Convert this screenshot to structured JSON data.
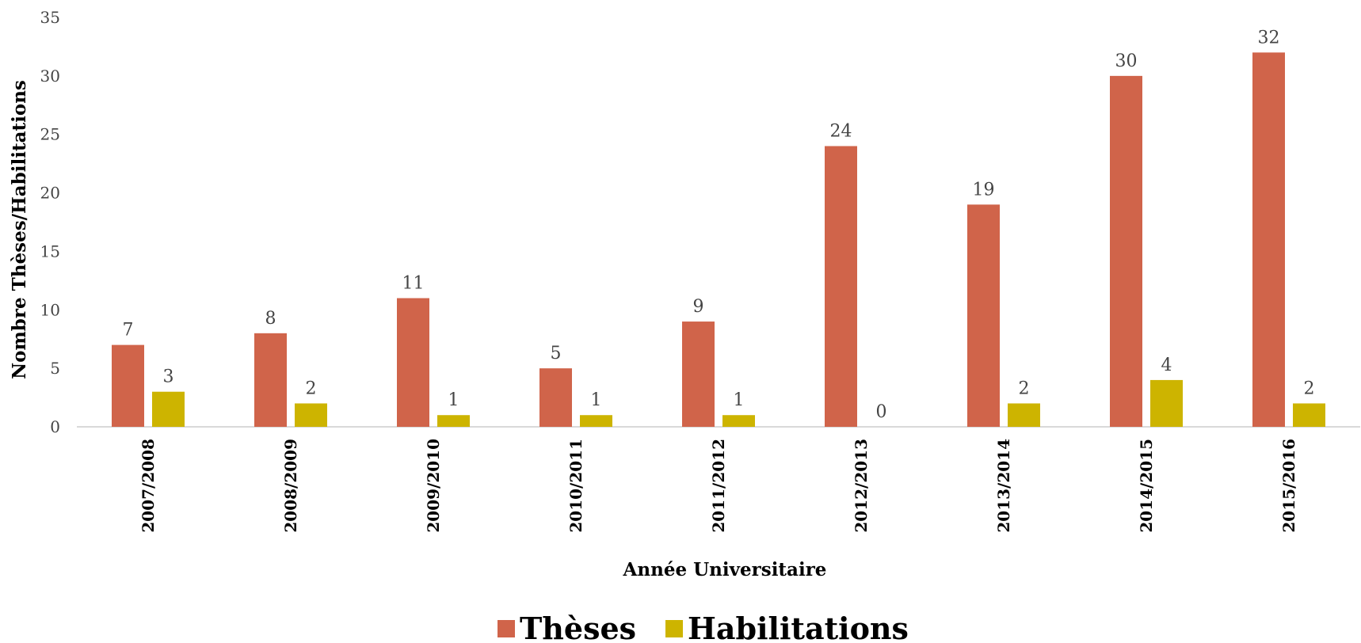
{
  "chart_data": {
    "type": "bar",
    "title": "",
    "xlabel": "Année Universitaire",
    "ylabel": "Nombre Thèses/Habilitations",
    "ylim": [
      0,
      35
    ],
    "yticks": [
      "0",
      "5",
      "10",
      "15",
      "20",
      "25",
      "30",
      "35"
    ],
    "grid": false,
    "legend_position": "bottom",
    "categories": [
      "2007/2008",
      "2008/2009",
      "2009/2010",
      "2010/2011",
      "2011/2012",
      "2012/2013",
      "2013/2014",
      "2014/2015",
      "2015/2016"
    ],
    "series": [
      {
        "name": "Thèses",
        "color": "#D0644A",
        "values": [
          7,
          8,
          11,
          5,
          9,
          24,
          19,
          30,
          32
        ]
      },
      {
        "name": "Habilitations",
        "color": "#CDB400",
        "values": [
          3,
          2,
          1,
          1,
          1,
          0,
          2,
          4,
          2
        ]
      }
    ]
  }
}
